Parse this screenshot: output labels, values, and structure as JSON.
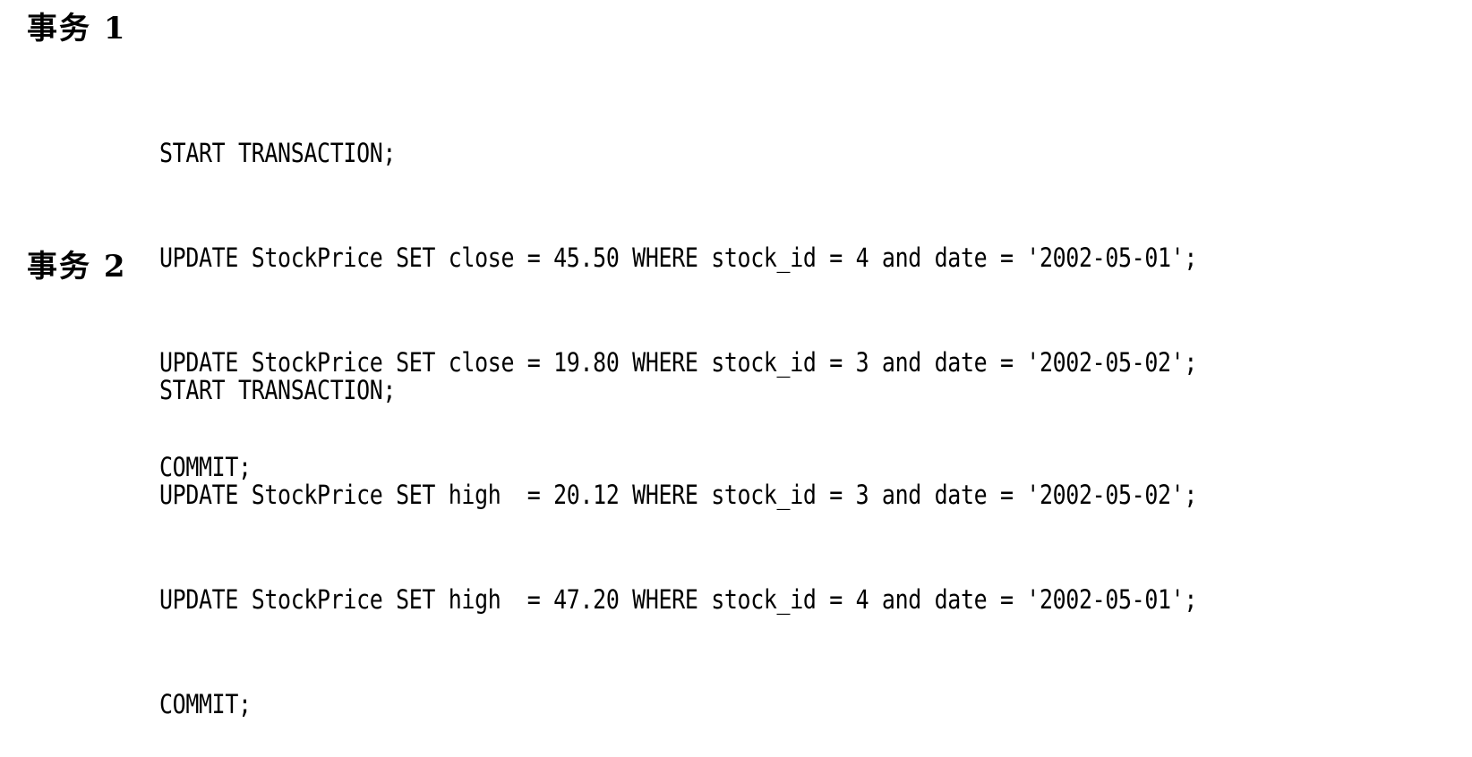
{
  "transactions": [
    {
      "heading": "事务 1",
      "lines": [
        "START TRANSACTION;",
        "UPDATE StockPrice SET close = 45.50 WHERE stock_id = 4 and date = '2002-05-01';",
        "UPDATE StockPrice SET close = 19.80 WHERE stock_id = 3 and date = '2002-05-02';",
        "COMMIT;"
      ]
    },
    {
      "heading": "事务 2",
      "lines": [
        "START TRANSACTION;",
        "UPDATE StockPrice SET high  = 20.12 WHERE stock_id = 3 and date = '2002-05-02';",
        "UPDATE StockPrice SET high  = 47.20 WHERE stock_id = 4 and date = '2002-05-01';",
        "COMMIT;"
      ]
    }
  ]
}
